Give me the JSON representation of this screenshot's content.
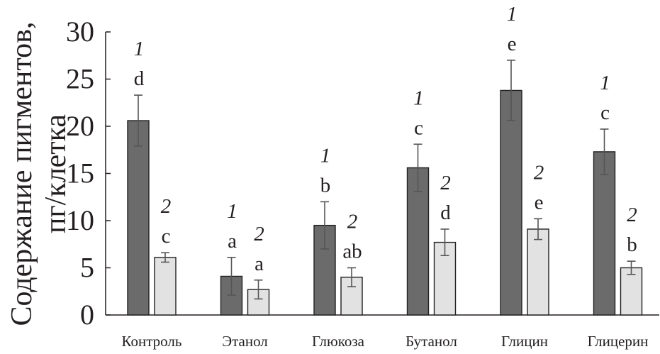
{
  "chart_data": {
    "type": "bar",
    "title": "",
    "ylabel": "Содержание пигментов, пг/клетка",
    "ylabel_lines": [
      "Содержание пигментов,",
      "пг/клетка"
    ],
    "xlabel": "",
    "ylim": [
      0,
      30
    ],
    "yticks": [
      0,
      5,
      10,
      15,
      20,
      25,
      30
    ],
    "grid": false,
    "categories": [
      "Контроль",
      "Этанол",
      "Глюкоза",
      "Бутанол",
      "Глицин",
      "Глицерин"
    ],
    "series": [
      {
        "name": "1",
        "color": "#6b6b6b",
        "values": [
          20.6,
          4.1,
          9.5,
          15.6,
          23.8,
          17.3
        ],
        "errors": [
          2.7,
          2.0,
          2.5,
          2.5,
          3.2,
          2.4
        ],
        "letters": [
          "d",
          "a",
          "b",
          "c",
          "e",
          "c"
        ]
      },
      {
        "name": "2",
        "color": "#e2e2e2",
        "values": [
          6.1,
          2.7,
          4.0,
          7.7,
          9.1,
          5.0
        ],
        "errors": [
          0.5,
          1.0,
          1.0,
          1.4,
          1.1,
          0.7
        ],
        "letters": [
          "c",
          "a",
          "ab",
          "d",
          "e",
          "b"
        ]
      }
    ]
  }
}
